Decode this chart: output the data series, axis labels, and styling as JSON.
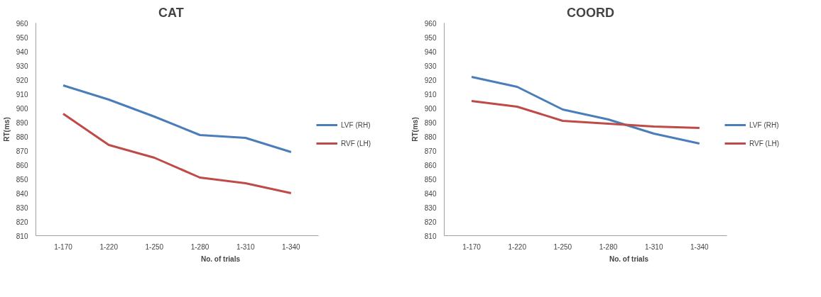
{
  "chart_data": [
    {
      "type": "line",
      "title": "CAT",
      "xlabel": "No. of trials",
      "ylabel": "RT(ms)",
      "categories": [
        "1-170",
        "1-220",
        "1-250",
        "1-280",
        "1-310",
        "1-340"
      ],
      "ylim": [
        810,
        960
      ],
      "yticks": [
        810,
        820,
        830,
        840,
        850,
        860,
        870,
        880,
        890,
        900,
        910,
        920,
        930,
        940,
        950,
        960
      ],
      "grid": false,
      "legend": "right",
      "marker": "none",
      "line_style": "solid",
      "series": [
        {
          "name": "LVF (RH)",
          "color": "#4a7ebb",
          "values": [
            916,
            906,
            894,
            881,
            879,
            869
          ]
        },
        {
          "name": "RVF (LH)",
          "color": "#be4b48",
          "values": [
            896,
            874,
            865,
            851,
            847,
            840
          ]
        }
      ]
    },
    {
      "type": "line",
      "title": "COORD",
      "xlabel": "No. of trials",
      "ylabel": "RT(ms)",
      "categories": [
        "1-170",
        "1-220",
        "1-250",
        "1-280",
        "1-310",
        "1-340"
      ],
      "ylim": [
        810,
        960
      ],
      "yticks": [
        810,
        820,
        830,
        840,
        850,
        860,
        870,
        880,
        890,
        900,
        910,
        920,
        930,
        940,
        950,
        960
      ],
      "grid": false,
      "legend": "right",
      "marker": "none",
      "line_style": "solid",
      "series": [
        {
          "name": "LVF (RH)",
          "color": "#4a7ebb",
          "values": [
            922,
            915,
            899,
            892,
            882,
            875
          ]
        },
        {
          "name": "RVF (LH)",
          "color": "#be4b48",
          "values": [
            905,
            901,
            891,
            889,
            887,
            886
          ]
        }
      ]
    }
  ]
}
